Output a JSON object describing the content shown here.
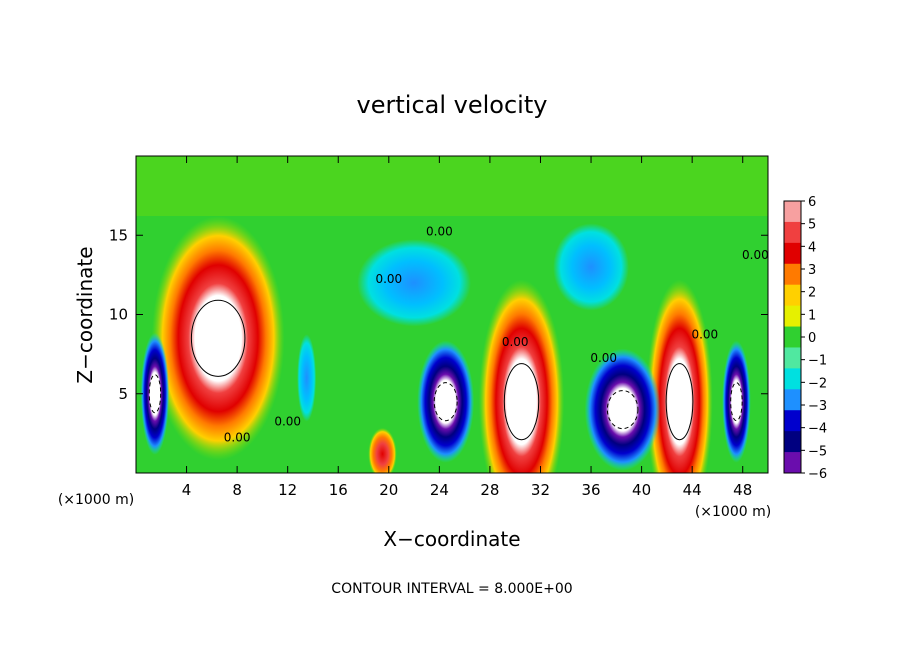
{
  "chart_data": {
    "type": "heatmap",
    "title": "vertical velocity",
    "xlabel": "X−coordinate",
    "ylabel": "Z−coordinate",
    "x_unit_left": "(×1000 m)",
    "x_unit_right": "(×1000 m)",
    "footer": "CONTOUR INTERVAL = 8.000E+00",
    "xlim": [
      0,
      50
    ],
    "ylim": [
      0,
      20
    ],
    "x_ticks": [
      4,
      8,
      12,
      16,
      20,
      24,
      28,
      32,
      36,
      40,
      44,
      48
    ],
    "y_ticks": [
      5,
      10,
      15
    ],
    "colorbar": {
      "labels": [
        "6",
        "5",
        "4",
        "3",
        "2",
        "1",
        "0",
        "−1",
        "−2",
        "−3",
        "−4",
        "−5",
        "−6"
      ],
      "range": [
        -6,
        6
      ],
      "colors": [
        "#f7a0a0",
        "#f04040",
        "#e00000",
        "#ff7a00",
        "#ffd000",
        "#e6f000",
        "#30d030",
        "#50e8a0",
        "#00e0e0",
        "#1e90ff",
        "#0000cd",
        "#000080",
        "#6a0dad"
      ]
    },
    "contour_labels": [
      "0.00",
      "0.00",
      "0.00",
      "0.00",
      "0.00",
      "0.00",
      "0.00",
      "0.00"
    ],
    "features": [
      {
        "kind": "updraft",
        "x": 6.5,
        "z": 8.5,
        "w": 7,
        "max": 9
      },
      {
        "kind": "updraft",
        "x": 30.5,
        "z": 4.5,
        "w": 4.5,
        "max": 10
      },
      {
        "kind": "updraft",
        "x": 43,
        "z": 4.5,
        "w": 3.5,
        "max": 9
      },
      {
        "kind": "updraft",
        "x": 19.5,
        "z": 1.2,
        "w": 1.5,
        "max": 3
      },
      {
        "kind": "downdraft",
        "x": 1.5,
        "z": 5,
        "w": 1.5,
        "min": -8
      },
      {
        "kind": "downdraft",
        "x": 13.5,
        "z": 6,
        "w": 1,
        "min": -4
      },
      {
        "kind": "downdraft",
        "x": 24.5,
        "z": 4.5,
        "w": 3,
        "min": -9
      },
      {
        "kind": "downdraft",
        "x": 38.5,
        "z": 4,
        "w": 4,
        "min": -10
      },
      {
        "kind": "downdraft",
        "x": 47.5,
        "z": 4.5,
        "w": 1.5,
        "min": -8
      },
      {
        "kind": "downdraft",
        "x": 22,
        "z": 12,
        "w": 6,
        "min": -3
      },
      {
        "kind": "downdraft",
        "x": 36,
        "z": 13,
        "w": 4,
        "min": -2.5
      }
    ]
  }
}
